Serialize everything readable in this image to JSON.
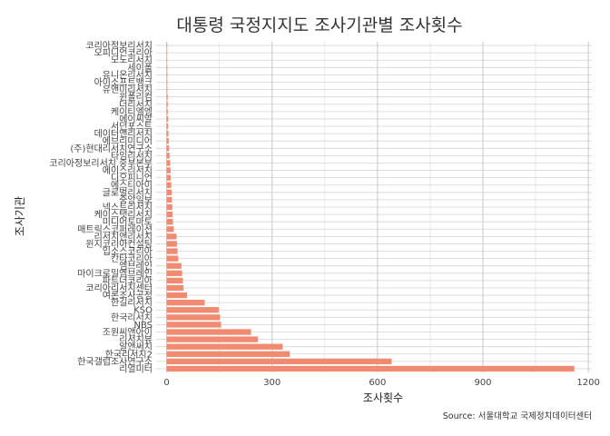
{
  "chart_data": {
    "type": "bar",
    "orientation": "horizontal",
    "title": "대통령 국정지지도 조사기관별 조사횟수",
    "xlabel": "조사횟수",
    "ylabel": "조사기관",
    "caption": "Source: 서울대학교 국제정치데이터센터",
    "xlim": [
      -30,
      1210
    ],
    "xticks": [
      0,
      300,
      600,
      900,
      1200
    ],
    "xtick_labels": [
      "0",
      "300",
      "600",
      "900",
      "1200"
    ],
    "bar_color": "#F08A70",
    "grid": true,
    "categories": [
      "리얼미터",
      "한국갤럽조사연구소",
      "한국리서치2",
      "알앤써치",
      "리서치뷰",
      "조원씨앤아이",
      "NBS",
      "한국리서치",
      "KSO",
      "한길리서치",
      "여론조사공정",
      "코리아리서치센터",
      "파트너코리아",
      "마이크로밀엠브레인",
      "엠브레인",
      "칸타코리아",
      "입소스코리아",
      "윈지코리아컨설팅",
      "리서치앤리서치",
      "매트릭스코퍼레이션",
      "미디어토마토",
      "케이스탯리서치",
      "넥스트리서치",
      "중앙일보",
      "글로벌리서치",
      "에스티아이",
      "디오피니언",
      "에이스리서치",
      "코리아정보리서치 중부본부",
      "타임리서치",
      "(주)현대리서치연구소",
      "에브리미디어",
      "데이터앤리서치",
      "서던포스트",
      "에이씨알",
      "케이티엘엠",
      "더리서치",
      "윈폴리컴",
      "유앤미리서치",
      "아이소프트뱅크",
      "유니온리서치",
      "세이폴",
      "모노리서치",
      "오피니언코리아",
      "코리아정보리서치"
    ],
    "values": [
      1160,
      640,
      350,
      330,
      260,
      240,
      155,
      152,
      148,
      108,
      58,
      48,
      46,
      44,
      42,
      33,
      31,
      29,
      28,
      20,
      18,
      17,
      16,
      15,
      14,
      13,
      12,
      11,
      10,
      8,
      7,
      6,
      5,
      4,
      4,
      3,
      3,
      3,
      2,
      2,
      2,
      2,
      1,
      1,
      1
    ]
  }
}
